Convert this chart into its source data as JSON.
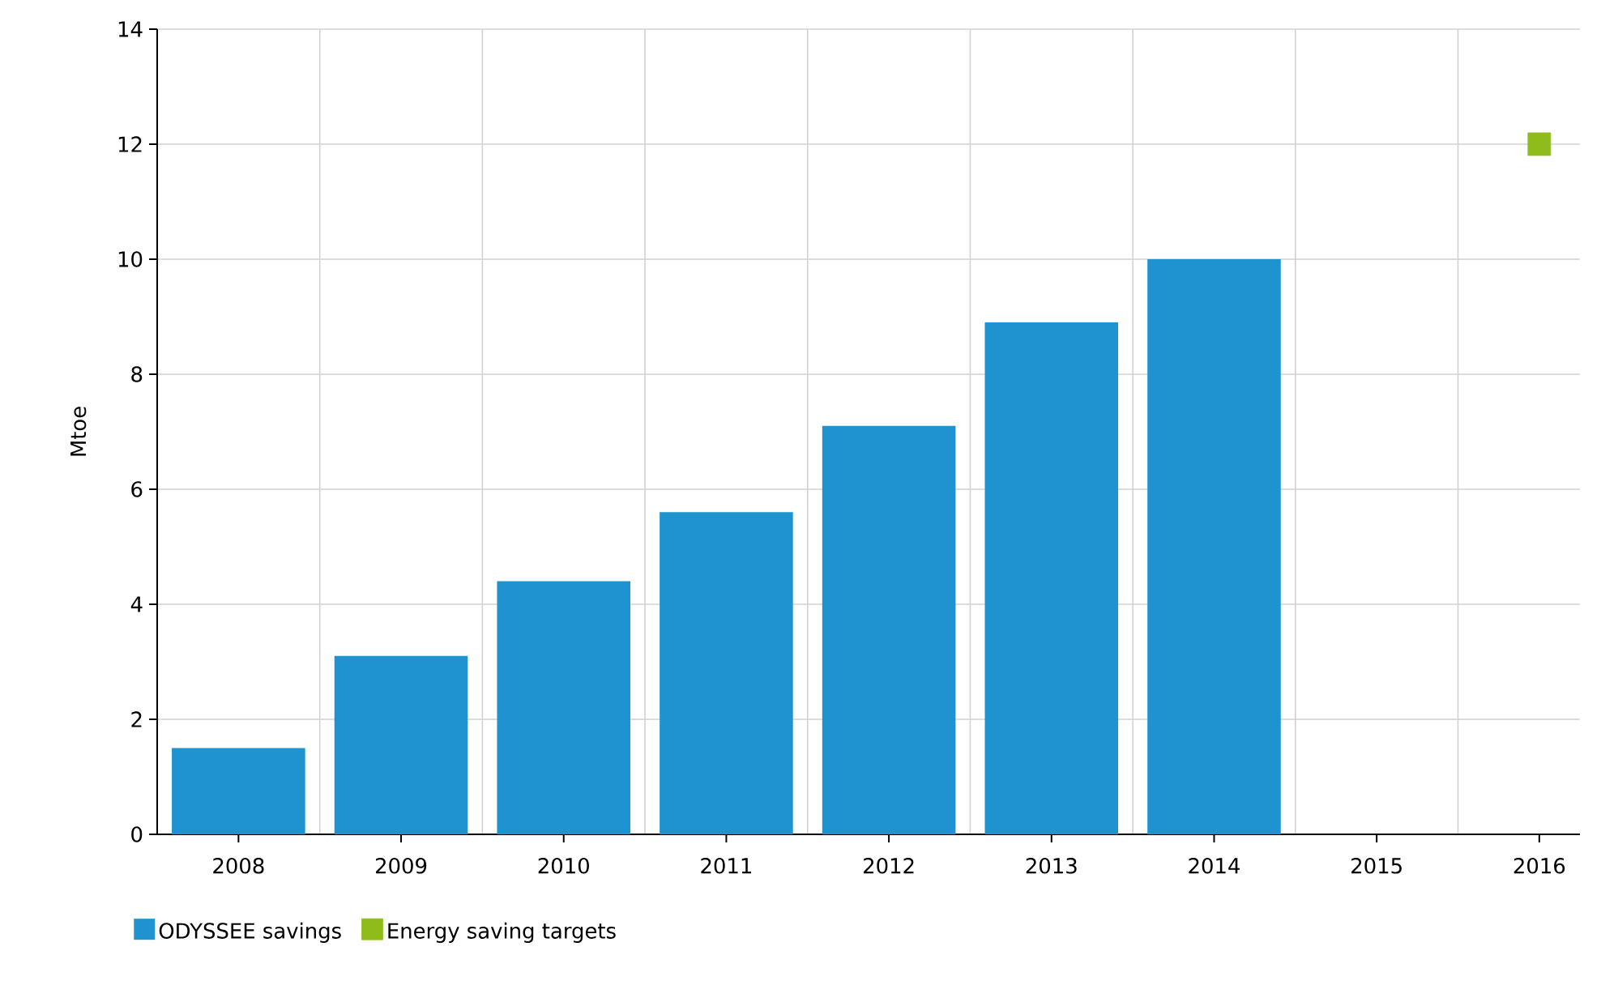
{
  "chart_data": {
    "type": "bar",
    "ylabel": "Mtoe",
    "categories": [
      "2008",
      "2009",
      "2010",
      "2011",
      "2012",
      "2013",
      "2014",
      "2015",
      "2016"
    ],
    "series": [
      {
        "name": "ODYSSEE savings",
        "color": "#1e93cf",
        "values": [
          1.5,
          3.1,
          4.4,
          5.6,
          7.1,
          8.9,
          10.0,
          null,
          null
        ]
      },
      {
        "name": "Energy saving targets",
        "type": "scatter",
        "marker": "square",
        "color": "#8fbc1a",
        "values": [
          null,
          null,
          null,
          null,
          null,
          null,
          null,
          null,
          12
        ]
      }
    ],
    "ylim": [
      0,
      14
    ],
    "yticks": [
      0,
      2,
      4,
      6,
      8,
      10,
      12,
      14
    ],
    "grid": true,
    "legend": "bottom left"
  }
}
